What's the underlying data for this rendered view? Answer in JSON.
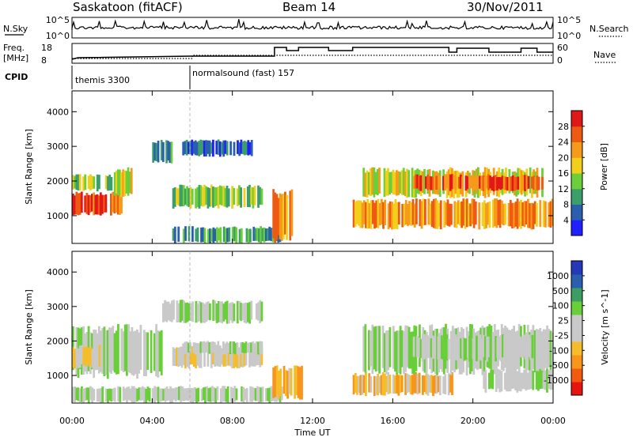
{
  "header": {
    "radar": "Saskatoon (fitACF)",
    "beam": "Beam 14",
    "date": "30/Nov/2011"
  },
  "noise_panel": {
    "left_label": "N.Sky",
    "left_ticks": [
      "10^5",
      "10^0"
    ],
    "right_label": "N.Search",
    "right_ticks": [
      "10^5",
      "10^0"
    ]
  },
  "freq_panel": {
    "left_label_1": "Freq.",
    "left_label_2": "[MHz]",
    "left_ticks": [
      "18",
      "8"
    ],
    "right_label": "Nave",
    "right_ticks": [
      "60",
      "0"
    ]
  },
  "cpid_panel": {
    "label": "CPID",
    "programs": [
      "themis 3300",
      "normalsound (fast) 157"
    ]
  },
  "x_ticks": [
    "00:00",
    "04:00",
    "08:00",
    "12:00",
    "16:00",
    "20:00",
    "00:00"
  ],
  "x_label": "Time UT",
  "colors": {
    "power": [
      "#1f1fff",
      "#2a5fb0",
      "#3c9e6a",
      "#6ccf3a",
      "#f2cf1a",
      "#f59a1a",
      "#ee5a12",
      "#e01818"
    ],
    "velocity": [
      "#e8140f",
      "#f25a10",
      "#f7951d",
      "#f5bd2a",
      "#c9c9c9",
      "#c9c9c9",
      "#68cf38",
      "#3c9e62",
      "#2a5fb0",
      "#2438b8"
    ]
  },
  "chart_data": [
    {
      "type": "heatmap",
      "name": "Power",
      "xlabel": "",
      "ylabel": "Slant Range [km]",
      "x_range_hours": [
        0,
        24
      ],
      "ylim": [
        200,
        4600
      ],
      "y_ticks": [
        "1000",
        "2000",
        "3000",
        "4000"
      ],
      "colorbar": {
        "label": "Power [dB]",
        "ticks": [
          "28",
          "24",
          "20",
          "16",
          "12",
          "8",
          "4"
        ],
        "range": [
          0,
          32
        ]
      },
      "regions": [
        {
          "t": [
            0.0,
            2.5
          ],
          "r": [
            1000,
            1700
          ],
          "level": 24
        },
        {
          "t": [
            0.0,
            2.0
          ],
          "r": [
            1700,
            2200
          ],
          "level": 14
        },
        {
          "t": [
            2.0,
            3.0
          ],
          "r": [
            1500,
            2400
          ],
          "level": 16
        },
        {
          "t": [
            4.0,
            5.0
          ],
          "r": [
            2500,
            3200
          ],
          "level": 8
        },
        {
          "t": [
            5.0,
            9.5
          ],
          "r": [
            1200,
            1900
          ],
          "level": 12
        },
        {
          "t": [
            5.5,
            9.0
          ],
          "r": [
            2700,
            3200
          ],
          "level": 6
        },
        {
          "t": [
            5.0,
            10.5
          ],
          "r": [
            200,
            700
          ],
          "level": 10
        },
        {
          "t": [
            10.0,
            11.0
          ],
          "r": [
            200,
            1800
          ],
          "level": 22
        },
        {
          "t": [
            14.0,
            24.0
          ],
          "r": [
            600,
            1500
          ],
          "level": 22
        },
        {
          "t": [
            14.5,
            23.5
          ],
          "r": [
            1500,
            2400
          ],
          "level": 16
        },
        {
          "t": [
            17.0,
            23.5
          ],
          "r": [
            1700,
            2200
          ],
          "level": 26
        }
      ]
    },
    {
      "type": "heatmap",
      "name": "Velocity",
      "xlabel": "Time UT",
      "ylabel": "Slant Range [km]",
      "x_range_hours": [
        0,
        24
      ],
      "ylim": [
        200,
        4600
      ],
      "y_ticks": [
        "1000",
        "2000",
        "3000",
        "4000"
      ],
      "colorbar": {
        "label": "Velocity [m s^-1]",
        "ticks": [
          "1000",
          "500",
          "100",
          "25",
          "-25",
          "-100",
          "-500",
          "-1000"
        ],
        "range": [
          -1250,
          1250
        ]
      },
      "regions": [
        {
          "t": [
            0.0,
            4.5
          ],
          "r": [
            900,
            2500
          ],
          "level": 0
        },
        {
          "t": [
            0.0,
            1.5
          ],
          "r": [
            1200,
            1900
          ],
          "level": -80
        },
        {
          "t": [
            5.0,
            9.5
          ],
          "r": [
            1200,
            1900
          ],
          "level": -200
        },
        {
          "t": [
            5.5,
            9.5
          ],
          "r": [
            1600,
            2000
          ],
          "level": 150
        },
        {
          "t": [
            4.5,
            9.5
          ],
          "r": [
            2500,
            3200
          ],
          "level": 0
        },
        {
          "t": [
            0.0,
            10.5
          ],
          "r": [
            200,
            700
          ],
          "level": 60
        },
        {
          "t": [
            10.0,
            11.5
          ],
          "r": [
            300,
            1300
          ],
          "level": -400
        },
        {
          "t": [
            14.0,
            19.0
          ],
          "r": [
            400,
            1100
          ],
          "level": -300
        },
        {
          "t": [
            14.5,
            24.0
          ],
          "r": [
            1000,
            2500
          ],
          "level": 0
        },
        {
          "t": [
            17.0,
            23.0
          ],
          "r": [
            1400,
            2200
          ],
          "level": 120
        },
        {
          "t": [
            20.5,
            24.0
          ],
          "r": [
            500,
            1200
          ],
          "level": 100
        }
      ]
    }
  ]
}
